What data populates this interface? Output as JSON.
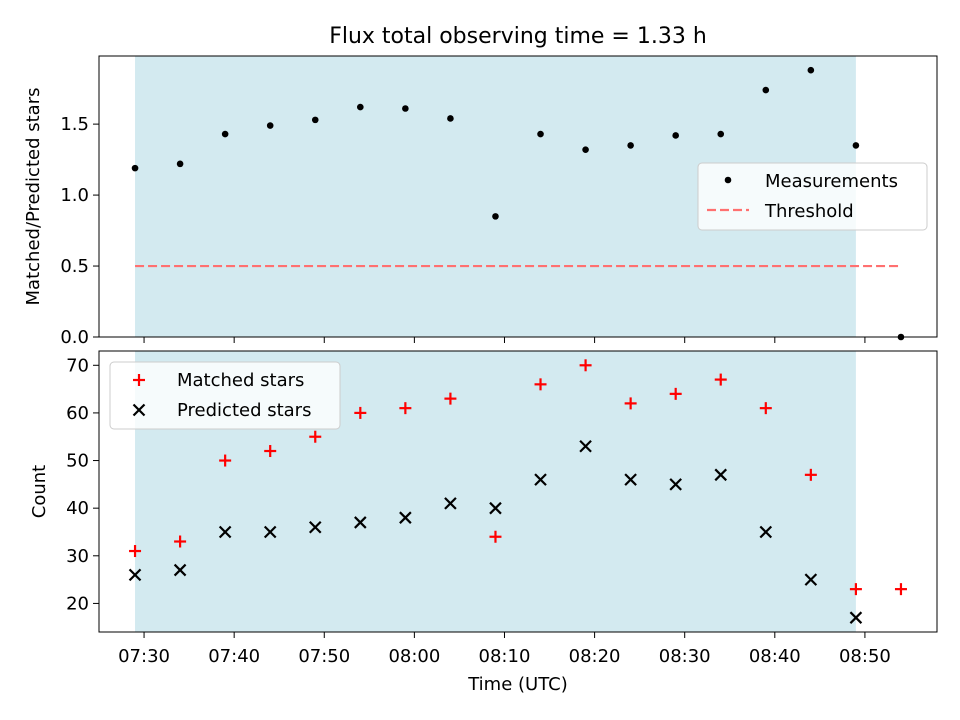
{
  "chart_data": [
    {
      "type": "scatter",
      "title": "Flux total observing time = 1.33 h",
      "xlabel": "",
      "ylabel": "Matched/Predicted stars",
      "ylim": [
        0,
        1.98
      ],
      "yticks": [
        0.0,
        0.5,
        1.0,
        1.5
      ],
      "ytick_labels": [
        "0.0",
        "0.5",
        "1.0",
        "1.5"
      ],
      "x_is_time": true,
      "xlim": [
        "07:25",
        "08:58"
      ],
      "legend_position": "center-right",
      "shaded_span": [
        "07:29",
        "08:49"
      ],
      "shade_color": "#d3eaf0",
      "series": [
        {
          "name": "Measurements",
          "marker": "dot",
          "color": "#000000",
          "x": [
            "07:29",
            "07:34",
            "07:39",
            "07:44",
            "07:49",
            "07:54",
            "07:59",
            "08:04",
            "08:09",
            "08:14",
            "08:19",
            "08:24",
            "08:29",
            "08:34",
            "08:39",
            "08:44",
            "08:49",
            "08:54"
          ],
          "y": [
            1.19,
            1.22,
            1.43,
            1.49,
            1.53,
            1.62,
            1.61,
            1.54,
            0.85,
            1.43,
            1.32,
            1.35,
            1.42,
            1.43,
            1.74,
            1.88,
            1.35,
            0.0
          ]
        },
        {
          "name": "Threshold",
          "line": "dashed",
          "color": "#ff7070",
          "x": [
            "07:29",
            "08:54"
          ],
          "y": [
            0.5,
            0.5
          ]
        }
      ]
    },
    {
      "type": "scatter",
      "title": "",
      "xlabel": "Time (UTC)",
      "ylabel": "Count",
      "ylim": [
        14,
        73
      ],
      "yticks": [
        20,
        30,
        40,
        50,
        60,
        70
      ],
      "ytick_labels": [
        "20",
        "30",
        "40",
        "50",
        "60",
        "70"
      ],
      "x_is_time": true,
      "xlim": [
        "07:25",
        "08:58"
      ],
      "xticks": [
        "07:30",
        "07:40",
        "07:50",
        "08:00",
        "08:10",
        "08:20",
        "08:30",
        "08:40",
        "08:50"
      ],
      "legend_position": "top-left",
      "shaded_span": [
        "07:29",
        "08:49"
      ],
      "shade_color": "#d3eaf0",
      "series": [
        {
          "name": "Matched stars",
          "marker": "plus",
          "color": "#ff0000",
          "x": [
            "07:29",
            "07:34",
            "07:39",
            "07:44",
            "07:49",
            "07:54",
            "07:59",
            "08:04",
            "08:09",
            "08:14",
            "08:19",
            "08:24",
            "08:29",
            "08:34",
            "08:39",
            "08:44",
            "08:49",
            "08:54"
          ],
          "y": [
            31,
            33,
            50,
            52,
            55,
            60,
            61,
            63,
            34,
            66,
            70,
            62,
            64,
            67,
            61,
            47,
            23,
            23
          ]
        },
        {
          "name": "Predicted stars",
          "marker": "x",
          "color": "#000000",
          "x": [
            "07:29",
            "07:34",
            "07:39",
            "07:44",
            "07:49",
            "07:54",
            "07:59",
            "08:04",
            "08:09",
            "08:14",
            "08:19",
            "08:24",
            "08:29",
            "08:34",
            "08:39",
            "08:44",
            "08:49"
          ],
          "y": [
            26,
            27,
            35,
            35,
            36,
            37,
            38,
            41,
            40,
            46,
            53,
            46,
            45,
            47,
            35,
            25,
            17
          ]
        }
      ]
    }
  ]
}
